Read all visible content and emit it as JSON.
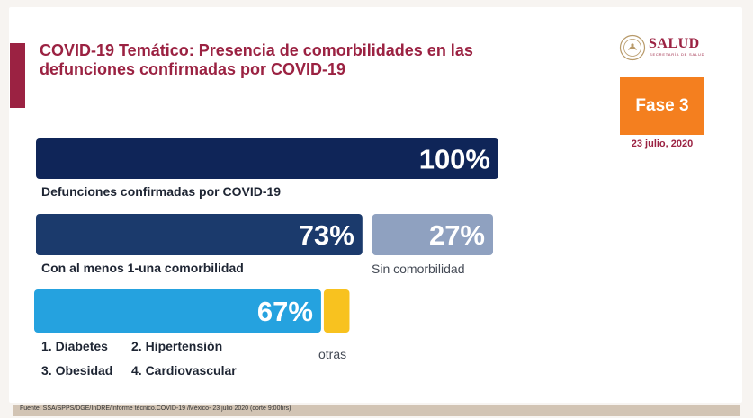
{
  "slide": {
    "title": "COVID-19 Temático: Presencia de comorbilidades en las defunciones confirmadas por COVID-19",
    "logo": {
      "word": "SALUD",
      "sub": "SECRETARÍA DE SALUD"
    },
    "phase": "Fase 3",
    "date": "23 julio, 2020",
    "comorbidity_list": [
      "1. Diabetes",
      "2. Hipertensión",
      "3. Obesidad",
      "4. Cardiovascular"
    ],
    "source": "Fuente: SSA/SPPS/DGE/InDRE/Informe técnico.COVID-19 /México- 23 julio 2020 (corte 9:00hrs)",
    "colors": {
      "brand": "#9b2242",
      "phase": "#f47f1f",
      "dark_navy": "#0f2558",
      "navy": "#1b3a6c",
      "light_slate": "#8fa1c0",
      "blue": "#25a2df",
      "yellow": "#f8c21f"
    }
  },
  "chart_data": {
    "type": "bar",
    "orientation": "horizontal",
    "unit": "%",
    "rows": [
      {
        "segments": [
          {
            "label": "Defunciones confirmadas por COVID-19",
            "value": 100,
            "value_label": "100%",
            "color": "#0f2558"
          }
        ]
      },
      {
        "segments": [
          {
            "label": "Con al menos 1-una comorbilidad",
            "value": 73,
            "value_label": "73%",
            "color": "#1b3a6c"
          },
          {
            "label": "Sin comorbilidad",
            "value": 27,
            "value_label": "27%",
            "color": "#8fa1c0"
          }
        ]
      },
      {
        "segments": [
          {
            "label": "",
            "value": 67,
            "value_label": "67%",
            "color": "#25a2df"
          },
          {
            "label": "otras",
            "value": 6,
            "value_label": "",
            "color": "#f8c21f"
          }
        ]
      }
    ]
  }
}
